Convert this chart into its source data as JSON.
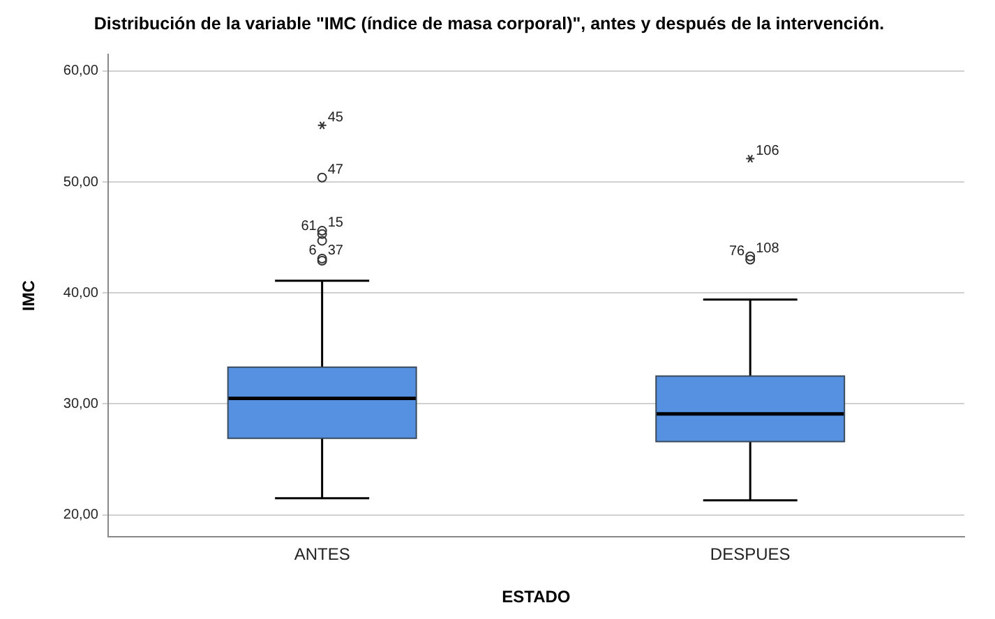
{
  "chart_data": {
    "type": "box",
    "title": "Distribución de la variable \"IMC (índice de masa corporal)\", antes y después de la intervención.",
    "xlabel": "ESTADO",
    "ylabel": "IMC",
    "categories": [
      "ANTES",
      "DESPUES"
    ],
    "color": "#5591e0",
    "boxes": [
      {
        "low": 21.5,
        "q1": 26.9,
        "median": 30.5,
        "q3": 33.3,
        "high": 41.1,
        "outliers": [
          55.1,
          50.4,
          45.6,
          45.3,
          44.7,
          43.1,
          42.9
        ]
      },
      {
        "low": 21.3,
        "q1": 26.6,
        "median": 29.1,
        "q3": 32.5,
        "high": 39.4,
        "outliers": [
          52.1,
          43.3,
          43.0
        ]
      }
    ],
    "ylim": [
      18,
      61.5
    ],
    "yticks": [
      {
        "value": 20,
        "label": "20,00"
      },
      {
        "value": 30,
        "label": "30,00"
      },
      {
        "value": 40,
        "label": "40,00"
      },
      {
        "value": 50,
        "label": "50,00"
      },
      {
        "value": 60,
        "label": "60,00"
      }
    ],
    "grid": "y",
    "legend": false,
    "annotations": [
      "45",
      "47",
      "15",
      "61",
      "37",
      "6",
      "106",
      "108",
      "76"
    ]
  }
}
